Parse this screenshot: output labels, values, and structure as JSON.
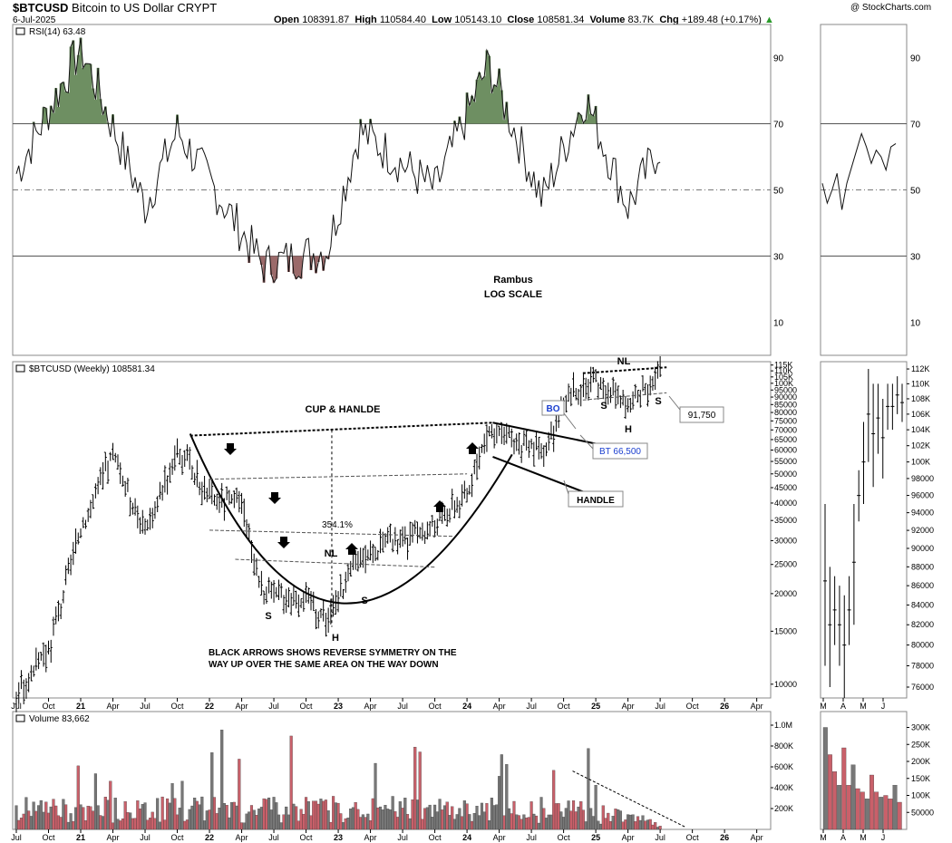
{
  "header": {
    "symbol": "$BTCUSD",
    "name": "Bitcoin to US Dollar",
    "exchange": "CRYPT",
    "date": "6-Jul-2025",
    "open_label": "Open",
    "open": "108391.87",
    "high_label": "High",
    "high": "110584.40",
    "low_label": "Low",
    "low": "105143.10",
    "close_label": "Close",
    "close": "108581.34",
    "volume_label": "Volume",
    "volume": "83.7K",
    "chg_label": "Chg",
    "chg": "+189.48 (+0.17%)",
    "credit": "@ StockCharts.com"
  },
  "rsi_panel": {
    "legend": "RSI(14) 63.48",
    "levels": [
      90,
      70,
      50,
      30,
      10
    ],
    "level_labels": [
      "90",
      "70",
      "50",
      "30",
      "10"
    ],
    "note_line1": "Rambus",
    "note_line2": "LOG SCALE"
  },
  "price_panel": {
    "legend": "$BTCUSD (Weekly) 108581.34",
    "right_ticks": [
      "115K",
      "110K",
      "105K",
      "100K",
      "95000",
      "90000",
      "85000",
      "80000",
      "75000",
      "70000",
      "65000",
      "60000",
      "55000",
      "50000",
      "45000",
      "40000",
      "35000",
      "30000",
      "25000",
      "20000",
      "15000",
      "10000"
    ],
    "inset_ticks": [
      "112K",
      "110K",
      "108K",
      "106K",
      "104K",
      "102K",
      "100K",
      "98000",
      "96000",
      "94000",
      "92000",
      "90000",
      "88000",
      "86000",
      "84000",
      "82000",
      "80000",
      "78000",
      "76000"
    ]
  },
  "annotations": {
    "cup_handle": "CUP & HANLDE",
    "percent": "354.1%",
    "nl_mid": "NL",
    "nl_top": "NL",
    "s_labels": [
      "S",
      "S",
      "S",
      "S"
    ],
    "h_labels": [
      "H",
      "H"
    ],
    "bo": "BO",
    "bt": "BT 66,500",
    "handle": "HANDLE",
    "level_91750": "91,750",
    "arrows_note_line1": "BLACK ARROWS SHOWS REVERSE SYMMETRY ON THE",
    "arrows_note_line2": "WAY UP OVER THE SAME AREA ON THE WAY DOWN"
  },
  "volume_panel": {
    "legend": "Volume 83,662",
    "right_ticks": [
      "1.0M",
      "800K",
      "600K",
      "400K",
      "200K"
    ],
    "inset_ticks": [
      "300K",
      "250K",
      "200K",
      "150K",
      "100K",
      "50000"
    ]
  },
  "x_axis": {
    "labels": [
      "Jul",
      "Oct",
      "21",
      "Apr",
      "Jul",
      "Oct",
      "22",
      "Apr",
      "Jul",
      "Oct",
      "23",
      "Apr",
      "Jul",
      "Oct",
      "24",
      "Apr",
      "Jul",
      "Oct",
      "25",
      "Apr",
      "Jul",
      "Oct",
      "26",
      "Apr"
    ],
    "inset_labels": [
      "M",
      "A",
      "M",
      "J"
    ]
  },
  "chart_data": {
    "type": "bar",
    "scale": "log",
    "title": "$BTCUSD (Weekly) 108581.34",
    "x_range": [
      "2020-07",
      "2026-04"
    ],
    "ylim": [
      9000,
      118000
    ],
    "price_path": [
      {
        "date": "2020-07",
        "close": 9200
      },
      {
        "date": "2020-10",
        "close": 13000
      },
      {
        "date": "2021-01",
        "close": 33000
      },
      {
        "date": "2021-04",
        "close": 58000
      },
      {
        "date": "2021-07",
        "close": 32000
      },
      {
        "date": "2021-10",
        "close": 61000
      },
      {
        "date": "2022-01",
        "close": 42000
      },
      {
        "date": "2022-04",
        "close": 39000
      },
      {
        "date": "2022-06",
        "close": 20000
      },
      {
        "date": "2022-10",
        "close": 19500
      },
      {
        "date": "2022-12",
        "close": 16500
      },
      {
        "date": "2023-03",
        "close": 27000
      },
      {
        "date": "2023-07",
        "close": 30000
      },
      {
        "date": "2023-10",
        "close": 34000
      },
      {
        "date": "2024-01",
        "close": 43000
      },
      {
        "date": "2024-03",
        "close": 70000
      },
      {
        "date": "2024-08",
        "close": 59000
      },
      {
        "date": "2024-11",
        "close": 96000
      },
      {
        "date": "2025-01",
        "close": 104000
      },
      {
        "date": "2025-04",
        "close": 84000
      },
      {
        "date": "2025-07",
        "close": 108581
      }
    ],
    "rsi": [
      {
        "date": "2020-07",
        "value": 55
      },
      {
        "date": "2021-01",
        "value": 93
      },
      {
        "date": "2021-07",
        "value": 45
      },
      {
        "date": "2021-10",
        "value": 68
      },
      {
        "date": "2022-06",
        "value": 27
      },
      {
        "date": "2022-12",
        "value": 32
      },
      {
        "date": "2023-03",
        "value": 68
      },
      {
        "date": "2023-10",
        "value": 50
      },
      {
        "date": "2024-03",
        "value": 88
      },
      {
        "date": "2024-08",
        "value": 47
      },
      {
        "date": "2024-12",
        "value": 78
      },
      {
        "date": "2025-04",
        "value": 45
      },
      {
        "date": "2025-07",
        "value": 63.48
      }
    ],
    "volume_max": 1000000,
    "levels": {
      "bt": 66500,
      "support": 91750
    }
  }
}
